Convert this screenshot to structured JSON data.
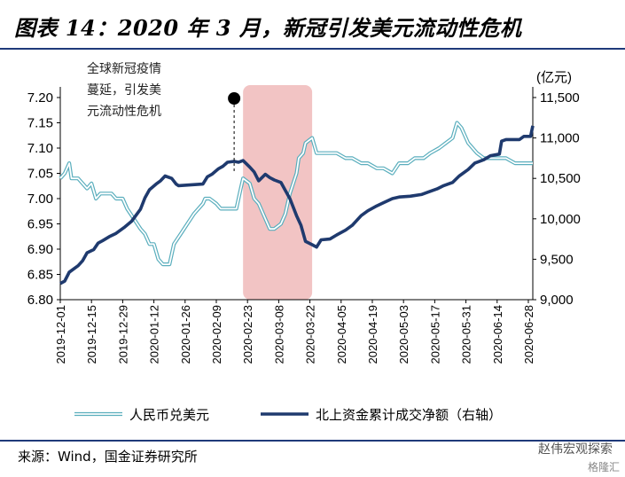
{
  "title": "图表 14：2020 年 3 月，新冠引发美元流动性危机",
  "source": "来源：Wind，国金证券研究所",
  "watermark": "赵伟宏观探索",
  "watermark_sub": "格隆汇",
  "chart_data": {
    "type": "line",
    "right_unit": "(亿元)",
    "annotation_lines": [
      "全球新冠疫情",
      "蔓延，引发美",
      "元流动性危机"
    ],
    "annotation_date": "2020-02-17",
    "shaded_range": [
      "2020-02-21",
      "2020-03-23"
    ],
    "x_range": [
      "2019-12-01",
      "2020-06-30"
    ],
    "x_ticks": [
      "2019-12-01",
      "2019-12-15",
      "2019-12-29",
      "2020-01-12",
      "2020-01-26",
      "2020-02-09",
      "2020-02-23",
      "2020-03-08",
      "2020-03-22",
      "2020-04-05",
      "2020-04-19",
      "2020-05-03",
      "2020-05-17",
      "2020-05-31",
      "2020-06-14",
      "2020-06-28"
    ],
    "y_left": {
      "ticks": [
        "7.20",
        "7.15",
        "7.10",
        "7.05",
        "7.00",
        "6.95",
        "6.90",
        "6.85",
        "6.80"
      ],
      "min": 6.8,
      "max": 7.2
    },
    "y_right": {
      "ticks": [
        "11,500",
        "11,000",
        "10,500",
        "10,000",
        "9,500",
        "9,000"
      ],
      "min": 9000,
      "max": 11500
    },
    "legend": [
      "人民币兑美元",
      "北上资金累计成交净额（右轴）"
    ],
    "colors": {
      "usdcny": "#7fc5cf",
      "northbound": "#1f3a6e",
      "shade": "#f2c4c4",
      "rule": "#1f3a7a"
    },
    "series": [
      {
        "name": "人民币兑美元",
        "axis": "left",
        "points": [
          [
            "2019-12-01",
            7.04
          ],
          [
            "2019-12-03",
            7.05
          ],
          [
            "2019-12-05",
            7.07
          ],
          [
            "2019-12-06",
            7.04
          ],
          [
            "2019-12-09",
            7.04
          ],
          [
            "2019-12-11",
            7.03
          ],
          [
            "2019-12-13",
            7.02
          ],
          [
            "2019-12-15",
            7.03
          ],
          [
            "2019-12-17",
            7.0
          ],
          [
            "2019-12-19",
            7.01
          ],
          [
            "2019-12-21",
            7.01
          ],
          [
            "2019-12-24",
            7.01
          ],
          [
            "2019-12-26",
            7.0
          ],
          [
            "2019-12-29",
            7.0
          ],
          [
            "2019-12-31",
            6.98
          ],
          [
            "2020-01-03",
            6.96
          ],
          [
            "2020-01-06",
            6.94
          ],
          [
            "2020-01-08",
            6.93
          ],
          [
            "2020-01-10",
            6.91
          ],
          [
            "2020-01-12",
            6.91
          ],
          [
            "2020-01-14",
            6.88
          ],
          [
            "2020-01-16",
            6.87
          ],
          [
            "2020-01-19",
            6.87
          ],
          [
            "2020-01-21",
            6.91
          ],
          [
            "2020-01-24",
            6.93
          ],
          [
            "2020-01-27",
            6.95
          ],
          [
            "2020-01-30",
            6.97
          ],
          [
            "2020-02-03",
            6.99
          ],
          [
            "2020-02-04",
            7.0
          ],
          [
            "2020-02-06",
            7.0
          ],
          [
            "2020-02-09",
            6.99
          ],
          [
            "2020-02-11",
            6.98
          ],
          [
            "2020-02-13",
            6.98
          ],
          [
            "2020-02-16",
            6.98
          ],
          [
            "2020-02-18",
            6.98
          ],
          [
            "2020-02-20",
            7.02
          ],
          [
            "2020-02-21",
            7.04
          ],
          [
            "2020-02-24",
            7.03
          ],
          [
            "2020-02-26",
            7.0
          ],
          [
            "2020-02-28",
            6.99
          ],
          [
            "2020-03-02",
            6.96
          ],
          [
            "2020-03-04",
            6.94
          ],
          [
            "2020-03-06",
            6.94
          ],
          [
            "2020-03-09",
            6.95
          ],
          [
            "2020-03-11",
            6.97
          ],
          [
            "2020-03-13",
            7.01
          ],
          [
            "2020-03-16",
            7.05
          ],
          [
            "2020-03-17",
            7.08
          ],
          [
            "2020-03-19",
            7.09
          ],
          [
            "2020-03-20",
            7.11
          ],
          [
            "2020-03-23",
            7.12
          ],
          [
            "2020-03-25",
            7.09
          ],
          [
            "2020-03-27",
            7.09
          ],
          [
            "2020-03-31",
            7.09
          ],
          [
            "2020-04-03",
            7.09
          ],
          [
            "2020-04-07",
            7.08
          ],
          [
            "2020-04-10",
            7.08
          ],
          [
            "2020-04-14",
            7.07
          ],
          [
            "2020-04-17",
            7.07
          ],
          [
            "2020-04-21",
            7.06
          ],
          [
            "2020-04-24",
            7.06
          ],
          [
            "2020-04-28",
            7.05
          ],
          [
            "2020-05-01",
            7.07
          ],
          [
            "2020-05-05",
            7.07
          ],
          [
            "2020-05-08",
            7.08
          ],
          [
            "2020-05-12",
            7.08
          ],
          [
            "2020-05-15",
            7.09
          ],
          [
            "2020-05-19",
            7.1
          ],
          [
            "2020-05-22",
            7.11
          ],
          [
            "2020-05-25",
            7.12
          ],
          [
            "2020-05-27",
            7.15
          ],
          [
            "2020-05-29",
            7.14
          ],
          [
            "2020-06-01",
            7.11
          ],
          [
            "2020-06-03",
            7.1
          ],
          [
            "2020-06-05",
            7.09
          ],
          [
            "2020-06-08",
            7.08
          ],
          [
            "2020-06-11",
            7.08
          ],
          [
            "2020-06-15",
            7.08
          ],
          [
            "2020-06-18",
            7.08
          ],
          [
            "2020-06-22",
            7.07
          ],
          [
            "2020-06-24",
            7.07
          ],
          [
            "2020-06-26",
            7.07
          ],
          [
            "2020-06-29",
            7.07
          ],
          [
            "2020-06-30",
            7.07
          ]
        ]
      },
      {
        "name": "北上资金累计成交净额（右轴）",
        "axis": "right",
        "points": [
          [
            "2019-12-01",
            9200
          ],
          [
            "2019-12-03",
            9230
          ],
          [
            "2019-12-05",
            9340
          ],
          [
            "2019-12-09",
            9420
          ],
          [
            "2019-12-11",
            9480
          ],
          [
            "2019-12-13",
            9580
          ],
          [
            "2019-12-16",
            9620
          ],
          [
            "2019-12-18",
            9700
          ],
          [
            "2019-12-20",
            9730
          ],
          [
            "2019-12-23",
            9780
          ],
          [
            "2019-12-26",
            9820
          ],
          [
            "2019-12-30",
            9900
          ],
          [
            "2020-01-02",
            9970
          ],
          [
            "2020-01-06",
            10120
          ],
          [
            "2020-01-08",
            10260
          ],
          [
            "2020-01-10",
            10360
          ],
          [
            "2020-01-13",
            10430
          ],
          [
            "2020-01-15",
            10470
          ],
          [
            "2020-01-17",
            10530
          ],
          [
            "2020-01-20",
            10500
          ],
          [
            "2020-01-22",
            10430
          ],
          [
            "2020-01-23",
            10410
          ],
          [
            "2020-02-03",
            10430
          ],
          [
            "2020-02-05",
            10520
          ],
          [
            "2020-02-07",
            10550
          ],
          [
            "2020-02-10",
            10620
          ],
          [
            "2020-02-12",
            10650
          ],
          [
            "2020-02-14",
            10700
          ],
          [
            "2020-02-17",
            10710
          ],
          [
            "2020-02-19",
            10700
          ],
          [
            "2020-02-21",
            10720
          ],
          [
            "2020-02-24",
            10640
          ],
          [
            "2020-02-26",
            10580
          ],
          [
            "2020-02-28",
            10470
          ],
          [
            "2020-03-02",
            10550
          ],
          [
            "2020-03-04",
            10510
          ],
          [
            "2020-03-06",
            10480
          ],
          [
            "2020-03-09",
            10450
          ],
          [
            "2020-03-11",
            10350
          ],
          [
            "2020-03-13",
            10250
          ],
          [
            "2020-03-16",
            10040
          ],
          [
            "2020-03-18",
            9920
          ],
          [
            "2020-03-20",
            9720
          ],
          [
            "2020-03-23",
            9680
          ],
          [
            "2020-03-25",
            9650
          ],
          [
            "2020-03-27",
            9740
          ],
          [
            "2020-03-31",
            9750
          ],
          [
            "2020-04-03",
            9800
          ],
          [
            "2020-04-07",
            9860
          ],
          [
            "2020-04-10",
            9920
          ],
          [
            "2020-04-14",
            10040
          ],
          [
            "2020-04-17",
            10100
          ],
          [
            "2020-04-21",
            10160
          ],
          [
            "2020-04-24",
            10200
          ],
          [
            "2020-04-28",
            10250
          ],
          [
            "2020-05-01",
            10270
          ],
          [
            "2020-05-06",
            10280
          ],
          [
            "2020-05-11",
            10300
          ],
          [
            "2020-05-14",
            10330
          ],
          [
            "2020-05-18",
            10370
          ],
          [
            "2020-05-21",
            10410
          ],
          [
            "2020-05-25",
            10450
          ],
          [
            "2020-05-28",
            10530
          ],
          [
            "2020-06-01",
            10610
          ],
          [
            "2020-06-04",
            10690
          ],
          [
            "2020-06-08",
            10730
          ],
          [
            "2020-06-11",
            10780
          ],
          [
            "2020-06-15",
            10800
          ],
          [
            "2020-06-16",
            10960
          ],
          [
            "2020-06-18",
            10980
          ],
          [
            "2020-06-22",
            10980
          ],
          [
            "2020-06-24",
            10980
          ],
          [
            "2020-06-26",
            11020
          ],
          [
            "2020-06-29",
            11020
          ],
          [
            "2020-06-30",
            11150
          ]
        ]
      }
    ]
  }
}
